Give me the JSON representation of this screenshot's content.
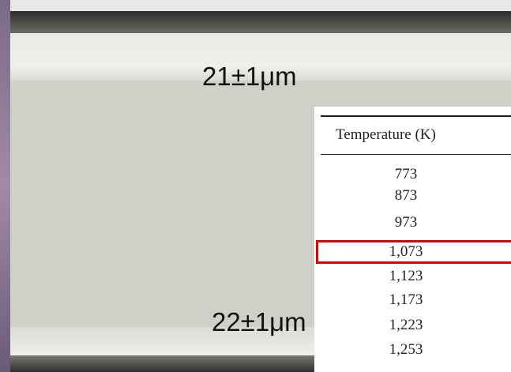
{
  "annotations": {
    "top_thickness": "21±1μm",
    "bottom_thickness": "22±1μm"
  },
  "table": {
    "header": "Temperature (K)",
    "rows": [
      "773",
      "873",
      "973",
      "1,073",
      "1,123",
      "1,173",
      "1,223",
      "1,253"
    ],
    "highlighted_row": 3
  }
}
